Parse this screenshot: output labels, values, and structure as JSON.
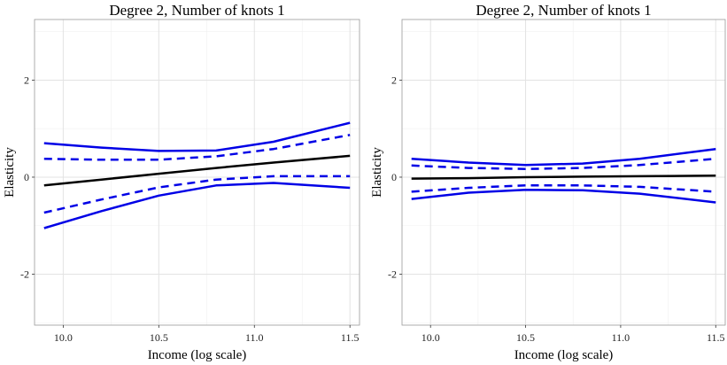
{
  "chart_data": [
    {
      "type": "line",
      "title": "Degree 2, Number of knots 1",
      "xlabel": "Income (log scale)",
      "ylabel": "Elasticity",
      "xlim": [
        9.85,
        11.55
      ],
      "ylim": [
        -3.05,
        3.25
      ],
      "x_ticks": [
        10.0,
        10.5,
        11.0,
        11.5
      ],
      "x_tick_labels": [
        "10.0",
        "10.5",
        "11.0",
        "11.5"
      ],
      "y_ticks": [
        -2,
        0,
        2
      ],
      "y_tick_labels": [
        "-2",
        "0",
        "2"
      ],
      "grid": true,
      "legend": "none",
      "series": [
        {
          "style": "solid",
          "color": "#000000",
          "x": [
            9.9,
            10.2,
            10.5,
            10.8,
            11.1,
            11.5
          ],
          "y": [
            -0.17,
            -0.05,
            0.07,
            0.19,
            0.3,
            0.44
          ]
        },
        {
          "style": "dashed",
          "color": "#0000e6",
          "x": [
            9.9,
            10.2,
            10.5,
            10.8,
            11.1,
            11.5
          ],
          "y": [
            0.38,
            0.36,
            0.36,
            0.43,
            0.58,
            0.87
          ]
        },
        {
          "style": "dashed",
          "color": "#0000e6",
          "x": [
            9.9,
            10.2,
            10.5,
            10.8,
            11.1,
            11.5
          ],
          "y": [
            -0.73,
            -0.46,
            -0.21,
            -0.05,
            0.02,
            0.02
          ]
        },
        {
          "style": "solid",
          "color": "#0000e6",
          "x": [
            9.9,
            10.2,
            10.5,
            10.8,
            11.1,
            11.5
          ],
          "y": [
            0.7,
            0.61,
            0.54,
            0.55,
            0.73,
            1.12
          ]
        },
        {
          "style": "solid",
          "color": "#0000e6",
          "x": [
            9.9,
            10.2,
            10.5,
            10.8,
            11.1,
            11.5
          ],
          "y": [
            -1.05,
            -0.7,
            -0.38,
            -0.17,
            -0.12,
            -0.22
          ]
        }
      ]
    },
    {
      "type": "line",
      "title": "Degree 2, Number of knots 1",
      "xlabel": "Income (log scale)",
      "ylabel": "Elasticity",
      "xlim": [
        9.85,
        11.55
      ],
      "ylim": [
        -3.05,
        3.25
      ],
      "x_ticks": [
        10.0,
        10.5,
        11.0,
        11.5
      ],
      "x_tick_labels": [
        "10.0",
        "10.5",
        "11.0",
        "11.5"
      ],
      "y_ticks": [
        -2,
        0,
        2
      ],
      "y_tick_labels": [
        "-2",
        "0",
        "2"
      ],
      "grid": true,
      "legend": "none",
      "series": [
        {
          "style": "solid",
          "color": "#000000",
          "x": [
            9.9,
            10.2,
            10.5,
            10.8,
            11.1,
            11.5
          ],
          "y": [
            -0.03,
            -0.02,
            0.0,
            0.01,
            0.02,
            0.03
          ]
        },
        {
          "style": "dashed",
          "color": "#0000e6",
          "x": [
            9.9,
            10.2,
            10.5,
            10.8,
            11.1,
            11.5
          ],
          "y": [
            0.24,
            0.19,
            0.17,
            0.19,
            0.25,
            0.38
          ]
        },
        {
          "style": "dashed",
          "color": "#0000e6",
          "x": [
            9.9,
            10.2,
            10.5,
            10.8,
            11.1,
            11.5
          ],
          "y": [
            -0.3,
            -0.22,
            -0.17,
            -0.17,
            -0.2,
            -0.3
          ]
        },
        {
          "style": "solid",
          "color": "#0000e6",
          "x": [
            9.9,
            10.2,
            10.5,
            10.8,
            11.1,
            11.5
          ],
          "y": [
            0.38,
            0.3,
            0.25,
            0.28,
            0.38,
            0.58
          ]
        },
        {
          "style": "solid",
          "color": "#0000e6",
          "x": [
            9.9,
            10.2,
            10.5,
            10.8,
            11.1,
            11.5
          ],
          "y": [
            -0.45,
            -0.32,
            -0.26,
            -0.27,
            -0.34,
            -0.52
          ]
        }
      ]
    }
  ]
}
